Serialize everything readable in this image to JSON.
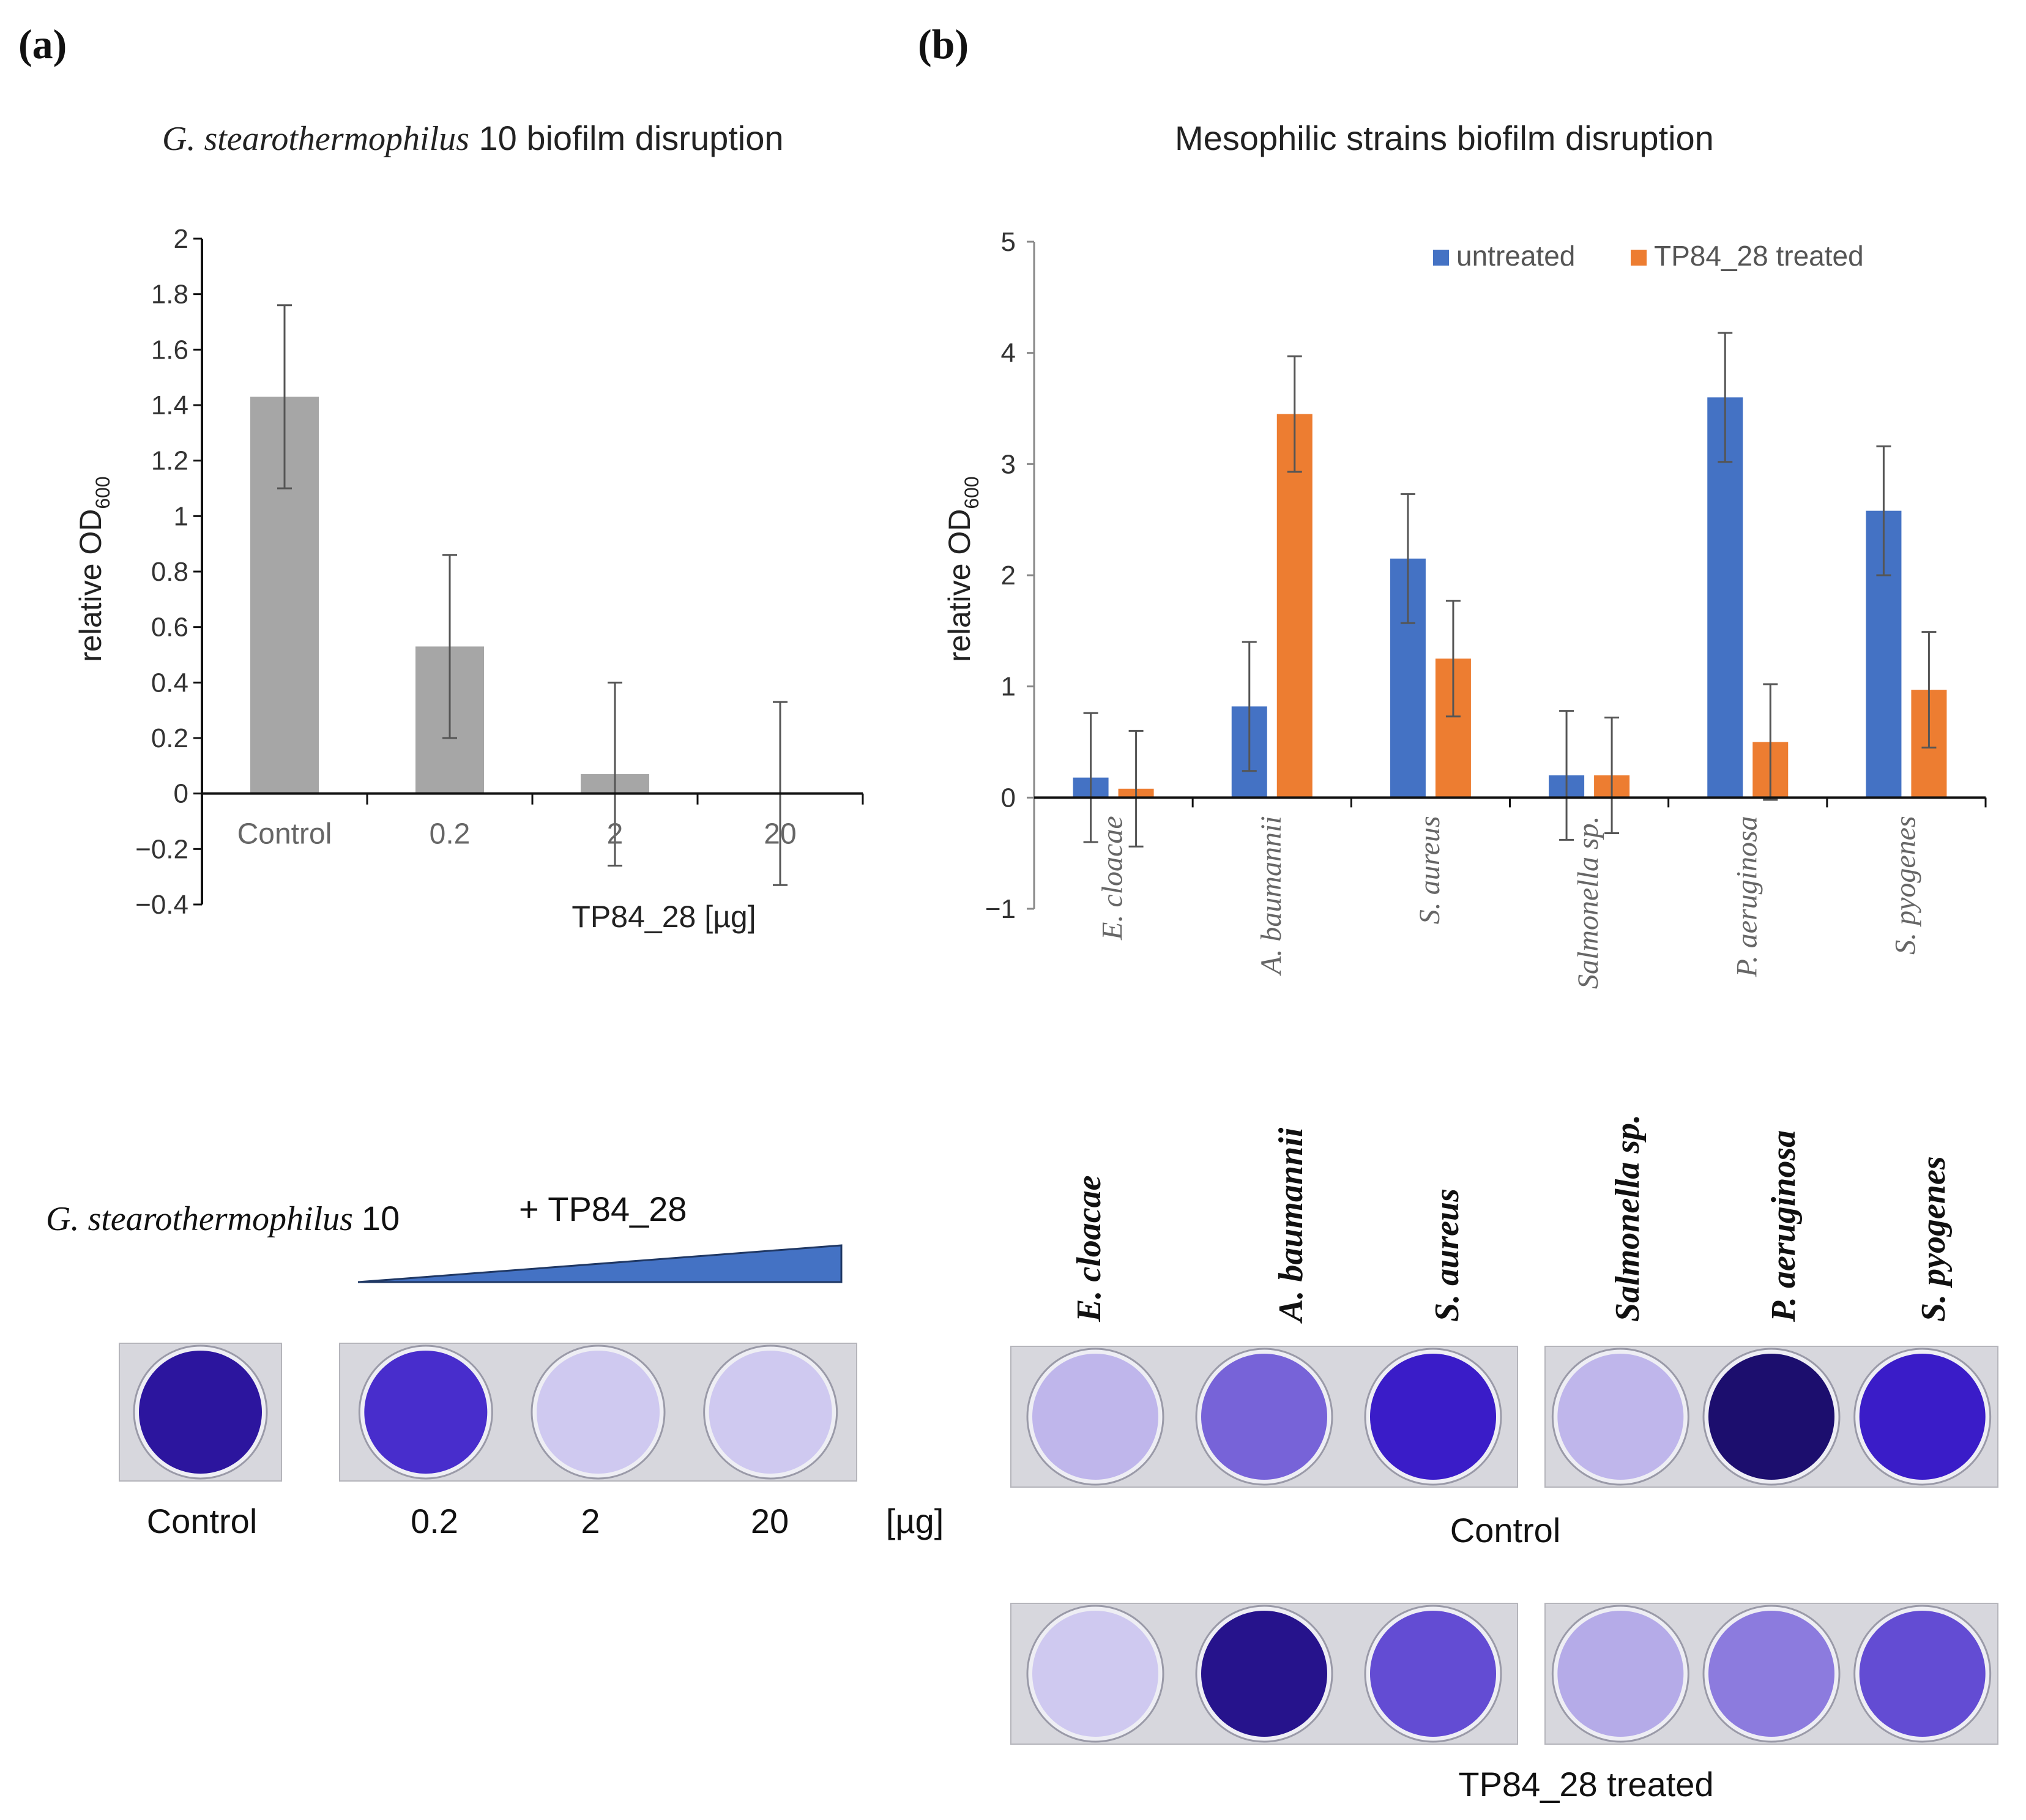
{
  "panels": {
    "a": {
      "label": "(a)",
      "title_italic": "G. stearothermophilus",
      "title_rest": " 10 biofilm disruption"
    },
    "b": {
      "label": "(b)",
      "title": "Mesophilic strains biofilm disruption"
    }
  },
  "chart_data": [
    {
      "type": "bar",
      "title": "G. stearothermophilus 10 biofilm disruption",
      "categories": [
        "Control",
        "0.2",
        "2",
        "20"
      ],
      "values": [
        1.43,
        0.53,
        0.07,
        0.0
      ],
      "errors": [
        0.33,
        0.33,
        0.33,
        0.33
      ],
      "xlabel": "TP84_28 [µg]",
      "ylabel": "relative OD",
      "ylabel_sub": "600",
      "ylim": [
        -0.4,
        2
      ],
      "yticks": [
        "2",
        "1.8",
        "1.6",
        "1.4",
        "1.2",
        "1",
        "0.8",
        "0.6",
        "0.4",
        "0.2",
        "0",
        "−0.2",
        "−0.4"
      ],
      "color": "#a6a6a6"
    },
    {
      "type": "bar",
      "title": "Mesophilic strains biofilm disruption",
      "categories": [
        "E. cloacae",
        "A. baumannii",
        "S. aureus",
        "Salmonella sp.",
        "P. aeruginosa",
        "S. pyogenes"
      ],
      "series": [
        {
          "name": "untreated",
          "values": [
            0.18,
            0.82,
            2.15,
            0.2,
            3.6,
            2.58
          ],
          "errors": [
            0.58,
            0.58,
            0.58,
            0.58,
            0.58,
            0.58
          ],
          "color": "#4472c4"
        },
        {
          "name": "TP84_28 treated",
          "values": [
            0.08,
            3.45,
            1.25,
            0.2,
            0.5,
            0.97
          ],
          "errors": [
            0.52,
            0.52,
            0.52,
            0.52,
            0.52,
            0.52
          ],
          "color": "#ed7d31"
        }
      ],
      "ylabel": "relative OD",
      "ylabel_sub": "600",
      "ylim": [
        -1,
        5
      ],
      "yticks": [
        "5",
        "4",
        "3",
        "2",
        "1",
        "0",
        "−1"
      ],
      "legend_position": "top-right"
    }
  ],
  "photos_a": {
    "species_italic": "G. stearothermophilus",
    "species_num": "10",
    "treatment_label": "+ TP84_28",
    "control_label": "Control",
    "dose_labels": [
      "0.2",
      "2",
      "20"
    ],
    "unit_label": "[µg]",
    "well_intensity": [
      0.92,
      0.78,
      0.12,
      0.12
    ]
  },
  "photos_b": {
    "strain_names": [
      "E. cloacae",
      "A. baumannii",
      "S. aureus",
      "Salmonella sp.",
      "P. aeruginosa",
      "S. pyogenes"
    ],
    "control_label": "Control",
    "treated_label": "TP84_28 treated",
    "control_intensity": [
      0.2,
      0.55,
      0.85,
      0.2,
      1.0,
      0.85
    ],
    "treated_intensity": [
      0.12,
      0.95,
      0.65,
      0.25,
      0.45,
      0.65
    ]
  }
}
